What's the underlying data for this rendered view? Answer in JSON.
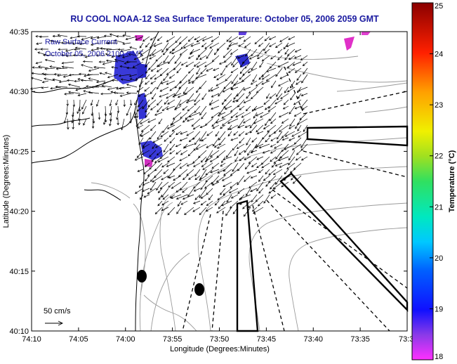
{
  "title": "RU COOL  NOAA-12  Sea Surface Temperature:  October 05, 2006 2059 GMT",
  "legend": {
    "line1": "Raw Surface Current",
    "line2": "October 05, 2006 2100 GMT",
    "scale_label": "50 cm/s"
  },
  "axes": {
    "xlabel": "Longitude (Degrees:Minutes)",
    "ylabel": "Latitude (Degrees:Minutes)",
    "x_ticks": [
      "74:10",
      "74:05",
      "74:00",
      "73:55",
      "73:50",
      "73:45",
      "73:40",
      "73:35",
      "73:3"
    ],
    "y_ticks": [
      "40:35",
      "40:30",
      "40:25",
      "40:20",
      "40:15",
      "40:10"
    ]
  },
  "colorbar": {
    "label": "Temperature (°C)",
    "ticks": [
      "25",
      "24",
      "23",
      "22",
      "21",
      "20",
      "19",
      "18"
    ],
    "min": 18,
    "max": 25
  },
  "colors": {
    "title": "#1a1aa0",
    "land": "#ffffff",
    "coast": "#000000",
    "bathymetry": "#9a9a9a",
    "sst_patch": "#3030d0",
    "sst_warm": "#e020c0"
  }
}
